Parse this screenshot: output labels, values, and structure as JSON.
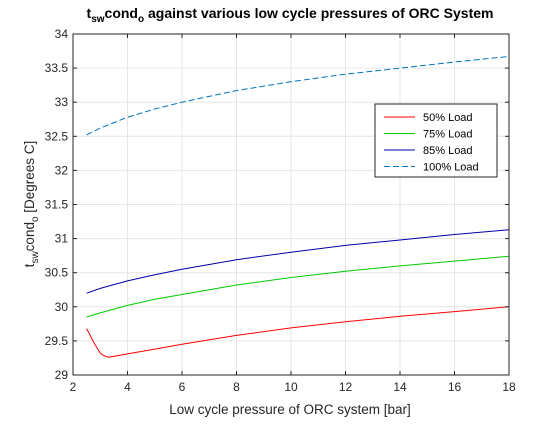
{
  "figure": {
    "background": "#ffffff"
  },
  "chart_data": {
    "type": "line",
    "title": {
      "parts": [
        {
          "text": "t",
          "sub": false
        },
        {
          "text": "sw",
          "sub": true
        },
        {
          "text": "cond",
          "sub": false
        },
        {
          "text": "o",
          "sub": true
        },
        {
          "text": " against various low cycle pressures of ORC System",
          "sub": false
        }
      ]
    },
    "xlabel": "Low cycle pressure of ORC system [bar]",
    "ylabel": {
      "parts": [
        {
          "text": "t",
          "sub": false
        },
        {
          "text": "sw",
          "sub": true
        },
        {
          "text": "cond",
          "sub": false
        },
        {
          "text": "o",
          "sub": true
        },
        {
          "text": " [Degrees C]",
          "sub": false
        }
      ]
    },
    "xlim": [
      2,
      18
    ],
    "ylim": [
      29,
      34
    ],
    "xticks": [
      2,
      4,
      6,
      8,
      10,
      12,
      14,
      16,
      18
    ],
    "yticks": [
      29,
      29.5,
      30,
      30.5,
      31,
      31.5,
      32,
      32.5,
      33,
      33.5,
      34
    ],
    "xtick_labels": [
      "2",
      "4",
      "6",
      "8",
      "10",
      "12",
      "14",
      "16",
      "18"
    ],
    "ytick_labels": [
      "29",
      "29.5",
      "30",
      "30.5",
      "31",
      "31.5",
      "32",
      "32.5",
      "33",
      "33.5",
      "34"
    ],
    "grid": true,
    "legend_position": "top-right",
    "series": [
      {
        "name": "50% Load",
        "color": "#ff0000",
        "dash": "solid",
        "x": [
          2.5,
          2.8,
          3.0,
          3.1,
          3.3,
          4,
          5,
          6,
          8,
          10,
          12,
          14,
          16,
          18
        ],
        "y": [
          29.68,
          29.45,
          29.32,
          29.29,
          29.26,
          29.31,
          29.38,
          29.45,
          29.58,
          29.69,
          29.78,
          29.86,
          29.93,
          30.0
        ]
      },
      {
        "name": "75% Load",
        "color": "#00cc00",
        "dash": "solid",
        "x": [
          2.5,
          3,
          4,
          5,
          6,
          8,
          10,
          12,
          14,
          16,
          18
        ],
        "y": [
          29.85,
          29.91,
          30.02,
          30.11,
          30.18,
          30.32,
          30.43,
          30.52,
          30.6,
          30.67,
          30.74
        ]
      },
      {
        "name": "85% Load",
        "color": "#0000aa",
        "dash": "solid",
        "x": [
          2.5,
          3,
          4,
          5,
          6,
          8,
          10,
          12,
          14,
          16,
          18
        ],
        "y": [
          30.2,
          30.27,
          30.38,
          30.47,
          30.55,
          30.69,
          30.8,
          30.9,
          30.98,
          31.06,
          31.13
        ]
      },
      {
        "name": "100% Load",
        "color": "#0072bd",
        "dash": "dashed",
        "x": [
          2.5,
          3,
          4,
          5,
          6,
          8,
          10,
          12,
          14,
          16,
          18
        ],
        "y": [
          32.52,
          32.62,
          32.78,
          32.9,
          33.0,
          33.17,
          33.3,
          33.41,
          33.5,
          33.59,
          33.67
        ]
      }
    ]
  }
}
